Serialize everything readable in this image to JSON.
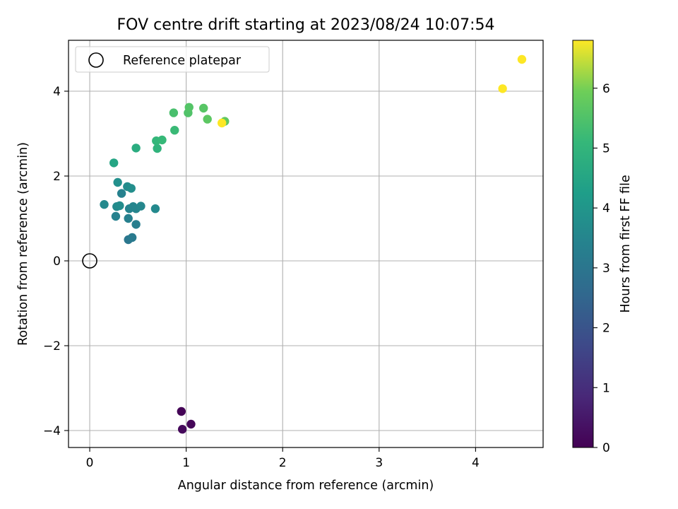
{
  "chart_data": {
    "type": "scatter",
    "title": "FOV centre drift starting at 2023/08/24 10:07:54",
    "xlabel": "Angular distance from reference (arcmin)",
    "ylabel": "Rotation from reference (arcmin)",
    "xlim": [
      -0.22,
      4.7
    ],
    "ylim": [
      -4.4,
      5.2
    ],
    "xticks": [
      0,
      1,
      2,
      3,
      4
    ],
    "yticks": [
      -4,
      -2,
      0,
      2,
      4
    ],
    "xtick_labels": [
      "0",
      "1",
      "2",
      "3",
      "4"
    ],
    "ytick_labels": [
      "−4",
      "−2",
      "0",
      "2",
      "4"
    ],
    "grid": true,
    "legend": {
      "placement": "upper-left",
      "entries": [
        {
          "label": "Reference platepar",
          "marker": "open-circle"
        }
      ]
    },
    "reference_point": {
      "x": 0,
      "y": 0
    },
    "colorbar": {
      "label": "Hours from first FF file",
      "colormap": "viridis",
      "range": [
        0,
        6.8
      ],
      "ticks": [
        0,
        1,
        2,
        3,
        4,
        5,
        6
      ],
      "tick_labels": [
        "0",
        "1",
        "2",
        "3",
        "4",
        "5",
        "6"
      ]
    },
    "points": [
      {
        "x": 0.95,
        "y": -3.55,
        "hours": 0.05
      },
      {
        "x": 1.05,
        "y": -3.85,
        "hours": 0.1
      },
      {
        "x": 0.96,
        "y": -3.97,
        "hours": 0.15
      },
      {
        "x": 0.4,
        "y": 0.5,
        "hours": 2.7
      },
      {
        "x": 0.44,
        "y": 0.55,
        "hours": 2.8
      },
      {
        "x": 0.48,
        "y": 0.86,
        "hours": 2.9
      },
      {
        "x": 0.4,
        "y": 1.0,
        "hours": 2.95
      },
      {
        "x": 0.27,
        "y": 1.05,
        "hours": 3.0
      },
      {
        "x": 0.41,
        "y": 1.23,
        "hours": 3.05
      },
      {
        "x": 0.45,
        "y": 1.28,
        "hours": 3.1
      },
      {
        "x": 0.48,
        "y": 1.23,
        "hours": 3.1
      },
      {
        "x": 0.53,
        "y": 1.29,
        "hours": 3.15
      },
      {
        "x": 0.68,
        "y": 1.23,
        "hours": 3.2
      },
      {
        "x": 0.15,
        "y": 1.33,
        "hours": 3.2
      },
      {
        "x": 0.28,
        "y": 1.28,
        "hours": 3.25
      },
      {
        "x": 0.31,
        "y": 1.3,
        "hours": 3.3
      },
      {
        "x": 0.33,
        "y": 1.59,
        "hours": 3.0
      },
      {
        "x": 0.39,
        "y": 1.75,
        "hours": 3.3
      },
      {
        "x": 0.43,
        "y": 1.71,
        "hours": 3.35
      },
      {
        "x": 0.29,
        "y": 1.85,
        "hours": 3.4
      },
      {
        "x": 0.25,
        "y": 2.31,
        "hours": 4.0
      },
      {
        "x": 0.48,
        "y": 2.66,
        "hours": 4.2
      },
      {
        "x": 0.7,
        "y": 2.65,
        "hours": 4.4
      },
      {
        "x": 0.69,
        "y": 2.83,
        "hours": 4.5
      },
      {
        "x": 0.75,
        "y": 2.85,
        "hours": 4.55
      },
      {
        "x": 0.88,
        "y": 3.08,
        "hours": 4.6
      },
      {
        "x": 0.87,
        "y": 3.49,
        "hours": 4.8
      },
      {
        "x": 1.02,
        "y": 3.49,
        "hours": 4.9
      },
      {
        "x": 1.03,
        "y": 3.62,
        "hours": 4.95
      },
      {
        "x": 1.18,
        "y": 3.6,
        "hours": 5.0
      },
      {
        "x": 1.22,
        "y": 3.34,
        "hours": 5.05
      },
      {
        "x": 1.4,
        "y": 3.29,
        "hours": 5.1
      },
      {
        "x": 1.37,
        "y": 3.25,
        "hours": 6.8
      },
      {
        "x": 4.28,
        "y": 4.06,
        "hours": 6.8
      },
      {
        "x": 4.48,
        "y": 4.75,
        "hours": 6.8
      }
    ]
  }
}
